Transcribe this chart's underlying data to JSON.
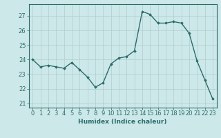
{
  "x": [
    0,
    1,
    2,
    3,
    4,
    5,
    6,
    7,
    8,
    9,
    10,
    11,
    12,
    13,
    14,
    15,
    16,
    17,
    18,
    19,
    20,
    21,
    22,
    23
  ],
  "y": [
    24.0,
    23.5,
    23.6,
    23.5,
    23.4,
    23.8,
    23.3,
    22.8,
    22.1,
    22.4,
    23.7,
    24.1,
    24.2,
    24.6,
    27.3,
    27.1,
    26.5,
    26.5,
    26.6,
    26.5,
    25.8,
    23.9,
    22.6,
    21.3
  ],
  "line_color": "#2a6b6b",
  "marker": "D",
  "marker_size": 1.8,
  "linewidth": 1.0,
  "xlabel": "Humidex (Indice chaleur)",
  "xlim": [
    -0.5,
    23.5
  ],
  "ylim": [
    20.7,
    27.8
  ],
  "yticks": [
    21,
    22,
    23,
    24,
    25,
    26,
    27
  ],
  "xticks": [
    0,
    1,
    2,
    3,
    4,
    5,
    6,
    7,
    8,
    9,
    10,
    11,
    12,
    13,
    14,
    15,
    16,
    17,
    18,
    19,
    20,
    21,
    22,
    23
  ],
  "bg_color": "#cde8e8",
  "grid_color": "#b0cccc",
  "tick_color": "#2a6b6b",
  "label_color": "#2a6b6b",
  "xlabel_fontsize": 6.5,
  "tick_fontsize": 6.0
}
